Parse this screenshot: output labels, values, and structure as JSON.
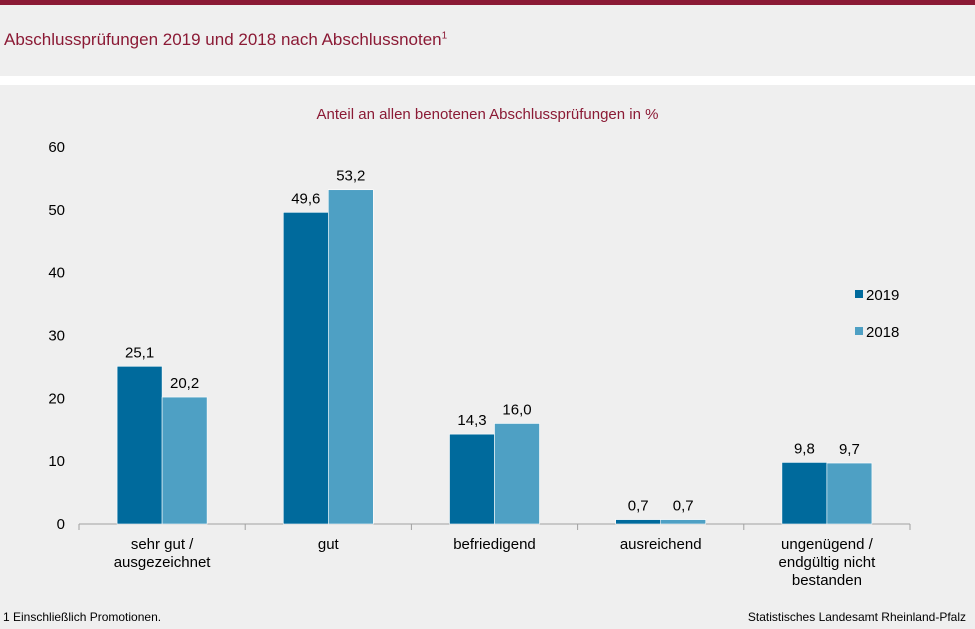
{
  "title": "Abschlussprüfungen 2019 und 2018 nach Abschlussnoten",
  "title_footnote_mark": "1",
  "footnote": "1 Einschließlich Promotionen.",
  "source": "Statistisches Landesamt  Rheinland-Pfalz",
  "colors": {
    "accent": "#8b1a35",
    "series_2019": "#006a9c",
    "series_2018": "#4ea0c4"
  },
  "chart_data": {
    "type": "bar",
    "title": "Anteil an allen benotenen Abschlussprüfungen  in %",
    "categories": [
      [
        "sehr gut /",
        "ausgezeichnet"
      ],
      [
        "gut"
      ],
      [
        "befriedigend"
      ],
      [
        "ausreichend"
      ],
      [
        "ungenügend /",
        "endgültig nicht",
        "bestanden"
      ]
    ],
    "series": [
      {
        "name": "2019",
        "values": [
          25.1,
          49.6,
          14.3,
          0.7,
          9.8
        ],
        "labels": [
          "25,1",
          "49,6",
          "14,3",
          "0,7",
          "9,8"
        ]
      },
      {
        "name": "2018",
        "values": [
          20.2,
          53.2,
          16.0,
          0.7,
          9.7
        ],
        "labels": [
          "20,2",
          "53,2",
          "16,0",
          "0,7",
          "9,7"
        ]
      }
    ],
    "ylim": [
      0,
      60
    ],
    "yticks": [
      0,
      10,
      20,
      30,
      40,
      50,
      60
    ],
    "grid": false,
    "legend": "right"
  }
}
